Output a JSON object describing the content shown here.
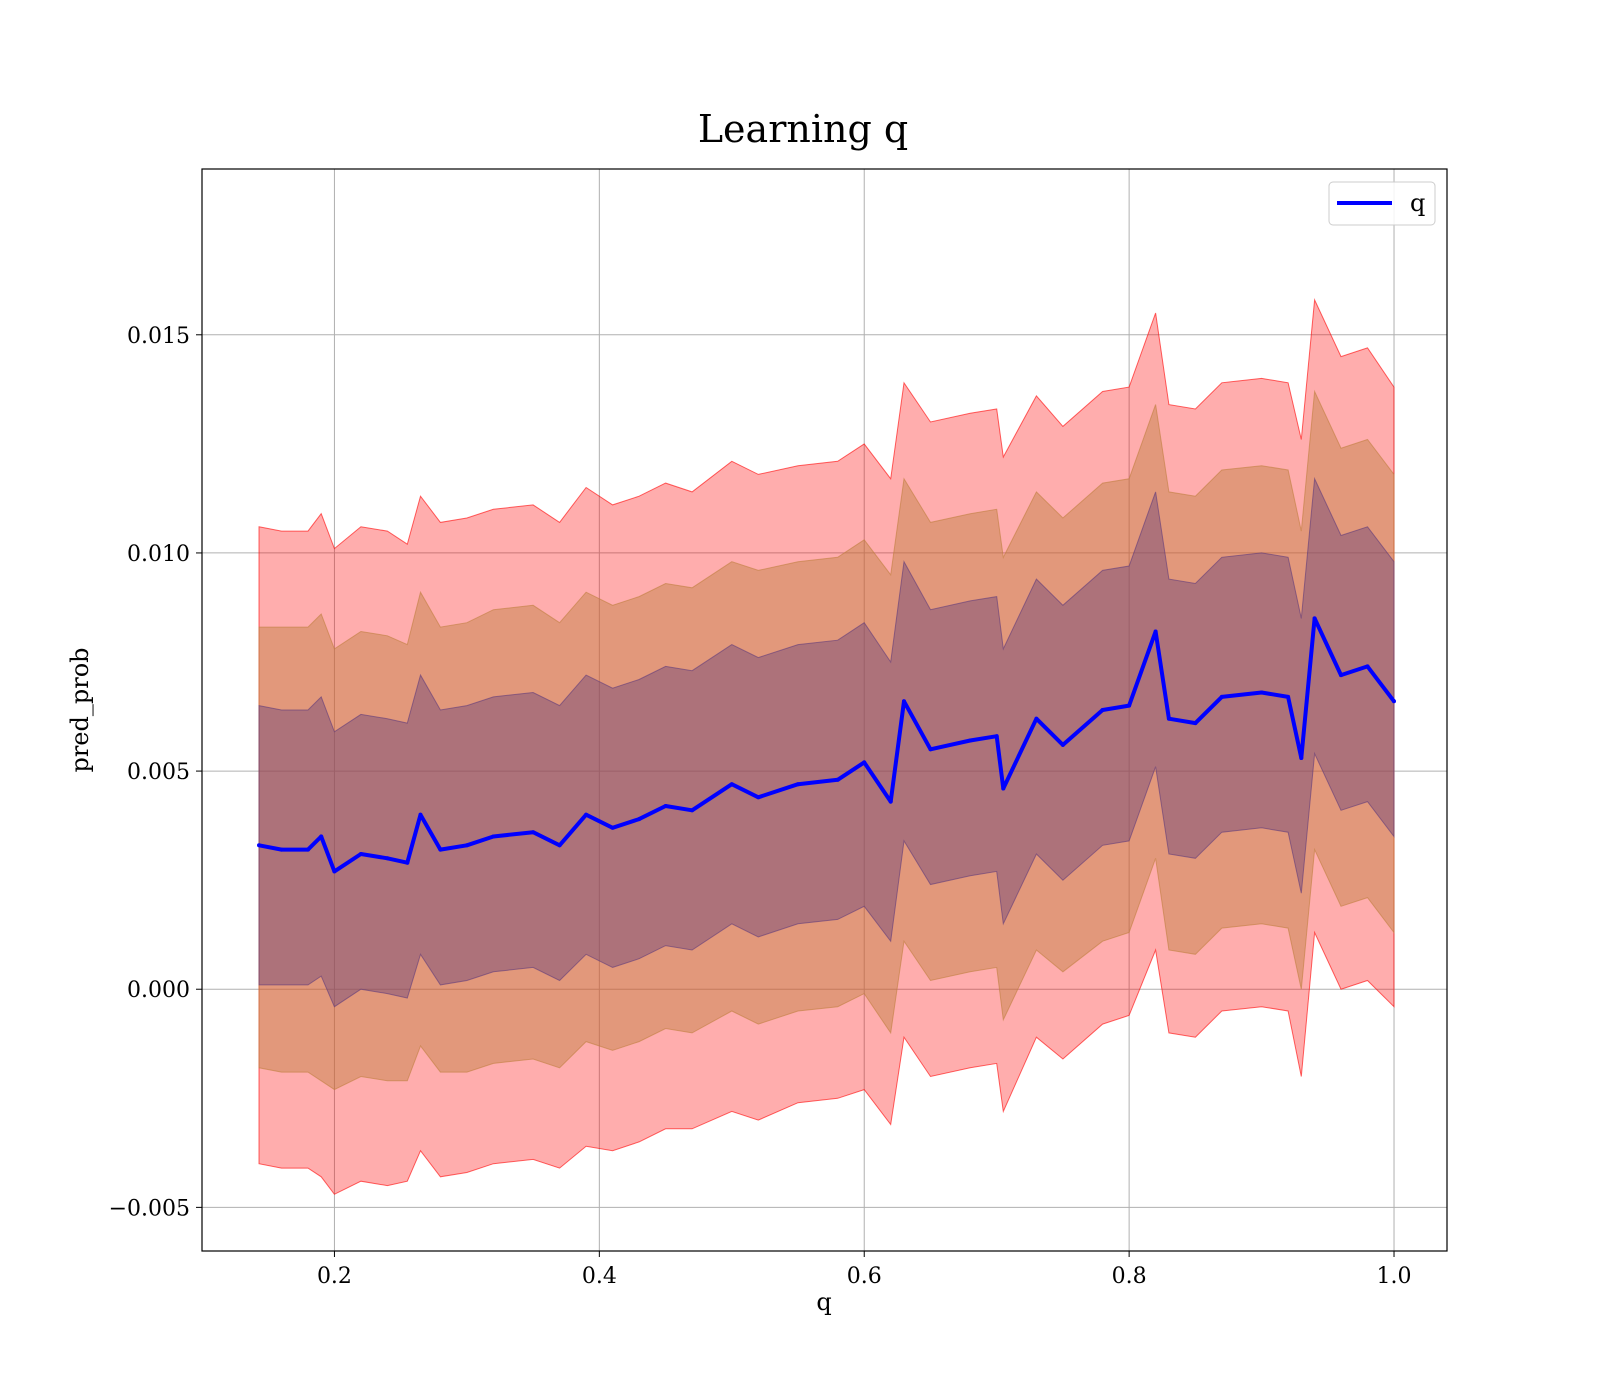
{
  "chart_data": {
    "type": "line",
    "title": "Learning q",
    "xlabel": "q",
    "ylabel": "pred_prob",
    "xlim": [
      0.1,
      1.04
    ],
    "ylim": [
      -0.006,
      0.0188
    ],
    "xticks": [
      0.2,
      0.4,
      0.6,
      0.8,
      1.0
    ],
    "xtick_labels": [
      "0.2",
      "0.4",
      "0.6",
      "0.8",
      "1.0"
    ],
    "yticks": [
      -0.005,
      0.0,
      0.005,
      0.01,
      0.015
    ],
    "ytick_labels": [
      "−0.005",
      "0.000",
      "0.005",
      "0.010",
      "0.015"
    ],
    "grid": true,
    "legend": {
      "position": "top-right",
      "entries": [
        "q"
      ]
    },
    "series": [
      {
        "name": "q",
        "color": "#0000ff",
        "x": [
          0.143,
          0.16,
          0.18,
          0.19,
          0.2,
          0.22,
          0.24,
          0.255,
          0.265,
          0.28,
          0.3,
          0.32,
          0.35,
          0.37,
          0.39,
          0.41,
          0.43,
          0.45,
          0.47,
          0.5,
          0.52,
          0.55,
          0.58,
          0.6,
          0.62,
          0.63,
          0.65,
          0.68,
          0.7,
          0.705,
          0.73,
          0.75,
          0.78,
          0.8,
          0.82,
          0.83,
          0.85,
          0.87,
          0.9,
          0.92,
          0.93,
          0.94,
          0.96,
          0.98,
          1.0
        ],
        "y": [
          0.0033,
          0.0032,
          0.0032,
          0.0035,
          0.0027,
          0.0031,
          0.003,
          0.0029,
          0.004,
          0.0032,
          0.0033,
          0.0035,
          0.0036,
          0.0033,
          0.004,
          0.0037,
          0.0039,
          0.0042,
          0.0041,
          0.0047,
          0.0044,
          0.0047,
          0.0048,
          0.0052,
          0.0043,
          0.0066,
          0.0055,
          0.0057,
          0.0058,
          0.0046,
          0.0062,
          0.0056,
          0.0064,
          0.0065,
          0.0082,
          0.0062,
          0.0061,
          0.0067,
          0.0068,
          0.0067,
          0.0053,
          0.0085,
          0.0072,
          0.0074,
          0.0066
        ]
      }
    ],
    "bands": [
      {
        "label": "band-outer",
        "color": "#ff0000",
        "opacity": 0.32,
        "lower": [
          -0.004,
          -0.0041,
          -0.0041,
          -0.0043,
          -0.0047,
          -0.0044,
          -0.0045,
          -0.0044,
          -0.0037,
          -0.0043,
          -0.0042,
          -0.004,
          -0.0039,
          -0.0041,
          -0.0036,
          -0.0037,
          -0.0035,
          -0.0032,
          -0.0032,
          -0.0028,
          -0.003,
          -0.0026,
          -0.0025,
          -0.0023,
          -0.0031,
          -0.0011,
          -0.002,
          -0.0018,
          -0.0017,
          -0.0028,
          -0.0011,
          -0.0016,
          -0.0008,
          -0.0006,
          0.0009,
          -0.001,
          -0.0011,
          -0.0005,
          -0.0004,
          -0.0005,
          -0.002,
          0.0013,
          0.0,
          0.0002,
          -0.0004
        ],
        "upper": [
          0.0106,
          0.0105,
          0.0105,
          0.0109,
          0.0101,
          0.0106,
          0.0105,
          0.0102,
          0.0113,
          0.0107,
          0.0108,
          0.011,
          0.0111,
          0.0107,
          0.0115,
          0.0111,
          0.0113,
          0.0116,
          0.0114,
          0.0121,
          0.0118,
          0.012,
          0.0121,
          0.0125,
          0.0117,
          0.0139,
          0.013,
          0.0132,
          0.0133,
          0.0122,
          0.0136,
          0.0129,
          0.0137,
          0.0138,
          0.0155,
          0.0134,
          0.0133,
          0.0139,
          0.014,
          0.0139,
          0.0126,
          0.0158,
          0.0145,
          0.0147,
          0.0138
        ]
      },
      {
        "label": "band-middle",
        "color": "#bf7f3f",
        "opacity": 0.45,
        "lower": [
          -0.0018,
          -0.0019,
          -0.0019,
          -0.0021,
          -0.0023,
          -0.002,
          -0.0021,
          -0.0021,
          -0.0013,
          -0.0019,
          -0.0019,
          -0.0017,
          -0.0016,
          -0.0018,
          -0.0012,
          -0.0014,
          -0.0012,
          -0.0009,
          -0.001,
          -0.0005,
          -0.0008,
          -0.0005,
          -0.0004,
          -0.0001,
          -0.001,
          0.0011,
          0.0002,
          0.0004,
          0.0005,
          -0.0007,
          0.0009,
          0.0004,
          0.0011,
          0.0013,
          0.003,
          0.0009,
          0.0008,
          0.0014,
          0.0015,
          0.0014,
          0.0,
          0.0032,
          0.0019,
          0.0021,
          0.0013
        ],
        "upper": [
          0.0083,
          0.0083,
          0.0083,
          0.0086,
          0.0078,
          0.0082,
          0.0081,
          0.0079,
          0.0091,
          0.0083,
          0.0084,
          0.0087,
          0.0088,
          0.0084,
          0.0091,
          0.0088,
          0.009,
          0.0093,
          0.0092,
          0.0098,
          0.0096,
          0.0098,
          0.0099,
          0.0103,
          0.0095,
          0.0117,
          0.0107,
          0.0109,
          0.011,
          0.0099,
          0.0114,
          0.0108,
          0.0116,
          0.0117,
          0.0134,
          0.0114,
          0.0113,
          0.0119,
          0.012,
          0.0119,
          0.0105,
          0.0137,
          0.0124,
          0.0126,
          0.0118
        ]
      },
      {
        "label": "band-inner",
        "color": "#5f3a7a",
        "opacity": 0.4,
        "lower": [
          0.0001,
          0.0001,
          0.0001,
          0.0003,
          -0.0004,
          0.0,
          -0.0001,
          -0.0002,
          0.0008,
          0.0001,
          0.0002,
          0.0004,
          0.0005,
          0.0002,
          0.0008,
          0.0005,
          0.0007,
          0.001,
          0.0009,
          0.0015,
          0.0012,
          0.0015,
          0.0016,
          0.0019,
          0.0011,
          0.0034,
          0.0024,
          0.0026,
          0.0027,
          0.0015,
          0.0031,
          0.0025,
          0.0033,
          0.0034,
          0.0051,
          0.0031,
          0.003,
          0.0036,
          0.0037,
          0.0036,
          0.0022,
          0.0054,
          0.0041,
          0.0043,
          0.0035
        ],
        "upper": [
          0.0065,
          0.0064,
          0.0064,
          0.0067,
          0.0059,
          0.0063,
          0.0062,
          0.0061,
          0.0072,
          0.0064,
          0.0065,
          0.0067,
          0.0068,
          0.0065,
          0.0072,
          0.0069,
          0.0071,
          0.0074,
          0.0073,
          0.0079,
          0.0076,
          0.0079,
          0.008,
          0.0084,
          0.0075,
          0.0098,
          0.0087,
          0.0089,
          0.009,
          0.0078,
          0.0094,
          0.0088,
          0.0096,
          0.0097,
          0.0114,
          0.0094,
          0.0093,
          0.0099,
          0.01,
          0.0099,
          0.0085,
          0.0117,
          0.0104,
          0.0106,
          0.0098
        ]
      }
    ]
  }
}
